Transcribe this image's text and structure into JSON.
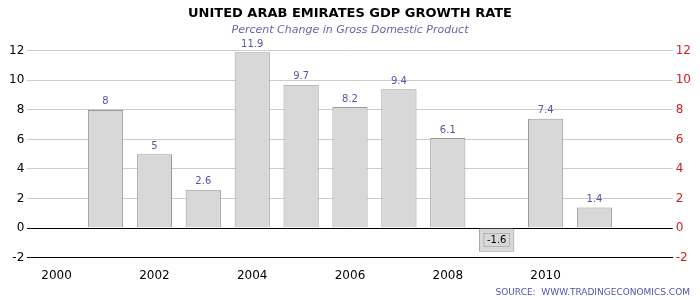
{
  "chart_data": {
    "type": "bar",
    "title": "UNITED ARAB EMIRATES GDP GROWTH RATE",
    "subtitle": "Percent Change in Gross Domestic Product",
    "annotations": [
      "SOURCE:  WWW.TRADINGECONOMICS.COM"
    ],
    "x": [
      2001,
      2002,
      2003,
      2004,
      2005,
      2006,
      2007,
      2008,
      2009,
      2010,
      2011
    ],
    "values": [
      8.0,
      5.0,
      2.6,
      11.9,
      9.7,
      8.2,
      9.4,
      6.1,
      -1.6,
      7.4,
      1.4
    ],
    "color": "#d8d8d8",
    "data_labels": true,
    "xlim": [
      1999.4,
      2012.6
    ],
    "xticks": [
      2000,
      2002,
      2004,
      2006,
      2008,
      2010
    ],
    "ylim": [
      -2,
      12
    ],
    "yticks": [
      -2,
      0,
      2,
      4,
      6,
      8,
      10,
      12
    ],
    "y2lim": [
      -2,
      12
    ],
    "y2ticks": [
      -2,
      0,
      2,
      4,
      6,
      8,
      10,
      12
    ],
    "grid": true
  }
}
